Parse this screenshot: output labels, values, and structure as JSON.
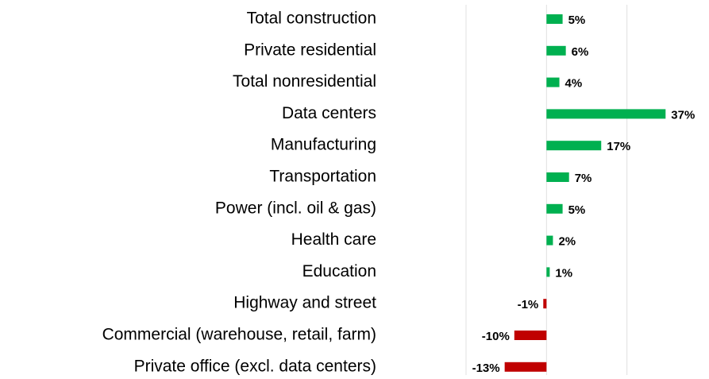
{
  "chart_data": {
    "type": "barh",
    "categories": [
      "Total construction",
      "Private residential",
      "Total nonresidential",
      "Data centers",
      "Manufacturing",
      "Transportation",
      "Power (incl. oil & gas)",
      "Health care",
      "Education",
      "Highway and street",
      "Commercial (warehouse, retail, farm)",
      "Private office (excl. data centers)"
    ],
    "values": [
      5,
      6,
      4,
      37,
      17,
      7,
      5,
      2,
      1,
      -1,
      -10,
      -13
    ],
    "value_labels": [
      "5%",
      "6%",
      "4%",
      "37%",
      "17%",
      "7%",
      "5%",
      "2%",
      "1%",
      "-1%",
      "-10%",
      "-13%"
    ],
    "color": "#00b050",
    "negative_color": "#c00000",
    "xlim": [
      -25,
      50
    ],
    "xticks": [
      -25,
      0,
      25
    ],
    "grid": true
  }
}
